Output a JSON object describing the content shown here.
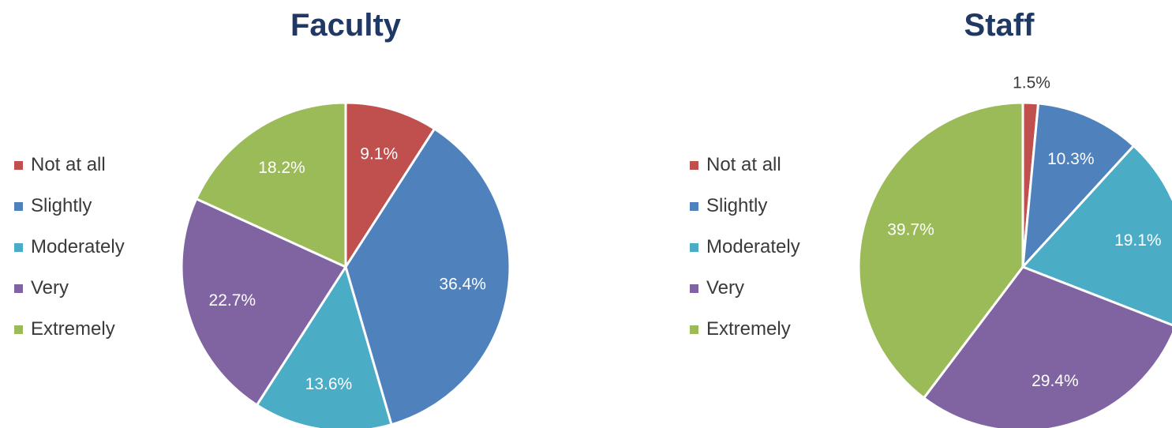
{
  "chart_data": [
    {
      "type": "pie",
      "title": "Faculty",
      "categories": [
        "Not at all",
        "Slightly",
        "Moderately",
        "Very",
        "Extremely"
      ],
      "values": [
        9.1,
        36.4,
        13.6,
        22.7,
        18.2
      ],
      "data_labels": [
        "9.1%",
        "36.4%",
        "13.6%",
        "22.7%",
        "18.2%"
      ],
      "colors": [
        "#c0504d",
        "#4f81bd",
        "#4bacc6",
        "#8064a2",
        "#9bbb59"
      ],
      "legend_position": "left",
      "start_angle": "12 o'clock",
      "direction": "clockwise"
    },
    {
      "type": "pie",
      "title": "Staff",
      "categories": [
        "Not at all",
        "Slightly",
        "Moderately",
        "Very",
        "Extremely"
      ],
      "values": [
        1.5,
        10.3,
        19.1,
        29.4,
        39.7
      ],
      "data_labels": [
        "1.5%",
        "10.3%",
        "19.1%",
        "29.4%",
        "39.7%"
      ],
      "colors": [
        "#c0504d",
        "#4f81bd",
        "#4bacc6",
        "#8064a2",
        "#9bbb59"
      ],
      "legend_position": "left",
      "start_angle": "12 o'clock",
      "direction": "clockwise"
    }
  ]
}
